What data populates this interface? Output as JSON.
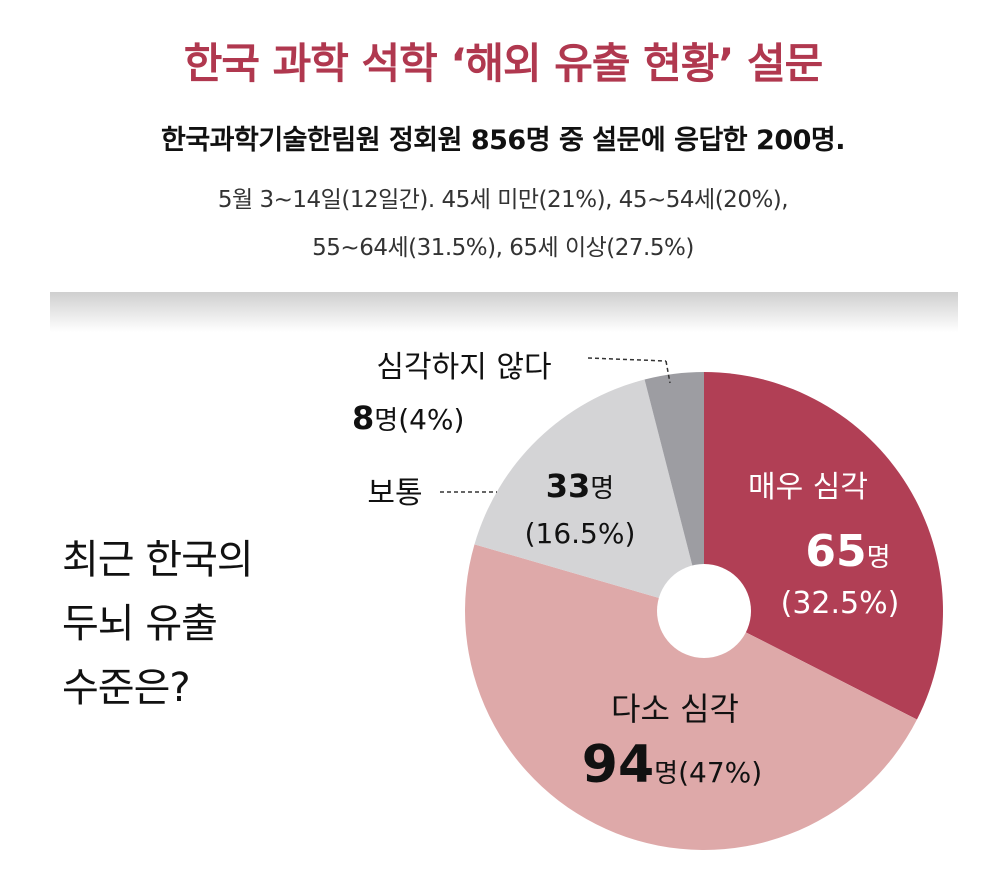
{
  "title": "한국 과학 석학 ‘해외 유출 현황’ 설문",
  "subtitle": "한국과학기술한림원 정회원 856명 중 설문에 응답한 200명.",
  "meta": {
    "line1": "5월 3∼14일(12일간). 45세 미만(21%), 45∼54세(20%),",
    "line2": "55∼64세(31.5%), 65세 이상(27.5%)"
  },
  "question": [
    "최근 한국의",
    "두뇌 유출",
    "수준은?"
  ],
  "chart_data": {
    "type": "pie",
    "donut": true,
    "unit": "명",
    "slices": [
      {
        "label": "매우 심각",
        "count": "65",
        "percent": 32.5,
        "pct_text": "(32.5%)",
        "color": "#b13f55",
        "text_color": "#ffffff"
      },
      {
        "label": "다소 심각",
        "count": "94",
        "percent": 47,
        "pct_text": "(47%)",
        "color": "#dea9a9",
        "text_color": "#111111"
      },
      {
        "label": "보통",
        "count": "33",
        "percent": 16.5,
        "pct_text": "(16.5%)",
        "color": "#d4d4d6",
        "text_color": "#111111"
      },
      {
        "label": "심각하지 않다",
        "count": "8",
        "percent": 4,
        "pct_text": "(4%)",
        "color": "#9d9da2",
        "text_color": "#111111"
      }
    ]
  }
}
